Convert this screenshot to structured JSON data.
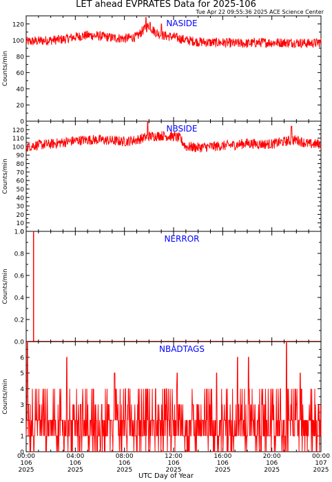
{
  "page": {
    "title": "LET ahead EVPRATES Data for 2025-106",
    "timestamp": "Tue Apr 22 09:55:36 2025 ACE Science Center",
    "xlabel": "UTC Day of Year"
  },
  "colors": {
    "series": "#ff0000",
    "panel_label": "#0000ff",
    "axis": "#000000"
  },
  "x_ticks": [
    {
      "time": "00:00",
      "day": "106",
      "year": "2025"
    },
    {
      "time": "04:00",
      "day": "106",
      "year": "2025"
    },
    {
      "time": "08:00",
      "day": "106",
      "year": "2025"
    },
    {
      "time": "12:00",
      "day": "106",
      "year": "2025"
    },
    {
      "time": "16:00",
      "day": "106",
      "year": "2025"
    },
    {
      "time": "20:00",
      "day": "106",
      "year": "2025"
    },
    {
      "time": "00:00",
      "day": "107",
      "year": "2025"
    }
  ],
  "chart_data": [
    {
      "type": "line",
      "name": "NASIDE",
      "ylabel": "Counts/min",
      "xlim_hours": [
        0,
        24
      ],
      "ylim": [
        0,
        130
      ],
      "yticks": [
        0,
        20,
        40,
        60,
        80,
        100,
        120
      ],
      "x_hours": [
        0,
        1,
        2,
        3,
        4,
        5,
        6,
        7,
        8,
        9,
        9.5,
        10,
        10.5,
        11,
        12,
        13,
        14,
        15,
        16,
        17,
        18,
        19,
        20,
        21,
        22,
        23,
        24
      ],
      "y": [
        98,
        99,
        100,
        101,
        104,
        106,
        105,
        103,
        102,
        104,
        112,
        118,
        110,
        106,
        104,
        100,
        98,
        97,
        97,
        96,
        96,
        97,
        97,
        97,
        97,
        96,
        97
      ],
      "spikes": [
        [
          9.75,
          128
        ],
        [
          10.1,
          122
        ],
        [
          11.0,
          120
        ]
      ]
    },
    {
      "type": "line",
      "name": "NBSIDE",
      "ylabel": "Counts/min",
      "xlim_hours": [
        0,
        24
      ],
      "ylim": [
        0,
        130
      ],
      "yticks": [
        0,
        10,
        20,
        30,
        40,
        50,
        60,
        70,
        80,
        90,
        100,
        110,
        120
      ],
      "x_hours": [
        0,
        1,
        2,
        3,
        4,
        5,
        6,
        7,
        8,
        9,
        10,
        11,
        12,
        12.5,
        13,
        14,
        15,
        16,
        17,
        18,
        19,
        20,
        21,
        22,
        23,
        24
      ],
      "y": [
        100,
        102,
        103,
        105,
        107,
        108,
        108,
        107,
        106,
        108,
        112,
        113,
        112,
        110,
        100,
        99,
        100,
        101,
        102,
        104,
        103,
        103,
        106,
        108,
        103,
        103
      ],
      "spikes": [
        [
          9.9,
          133
        ],
        [
          21.6,
          124
        ]
      ]
    },
    {
      "type": "line",
      "name": "NERROR",
      "ylabel": "Counts/min",
      "xlim_hours": [
        0,
        24
      ],
      "ylim": [
        0,
        1
      ],
      "yticks": [
        0.0,
        0.2,
        0.4,
        0.6,
        0.8,
        1.0
      ],
      "baseline": 0,
      "spikes": [
        [
          0.6,
          1.0
        ]
      ]
    },
    {
      "type": "line",
      "name": "NBADTAGS",
      "ylabel": "Counts/min",
      "xlim_hours": [
        0,
        24
      ],
      "ylim": [
        0,
        7
      ],
      "yticks": [
        0,
        1,
        2,
        3,
        4,
        5,
        6
      ],
      "typical_range": [
        0,
        4
      ],
      "spikes": [
        [
          0.1,
          7
        ],
        [
          3.3,
          6
        ],
        [
          17.2,
          6
        ],
        [
          18.1,
          6
        ],
        [
          21.2,
          7
        ],
        [
          7.2,
          5
        ],
        [
          12.3,
          5
        ],
        [
          15.5,
          5
        ],
        [
          22.3,
          5
        ]
      ]
    }
  ]
}
